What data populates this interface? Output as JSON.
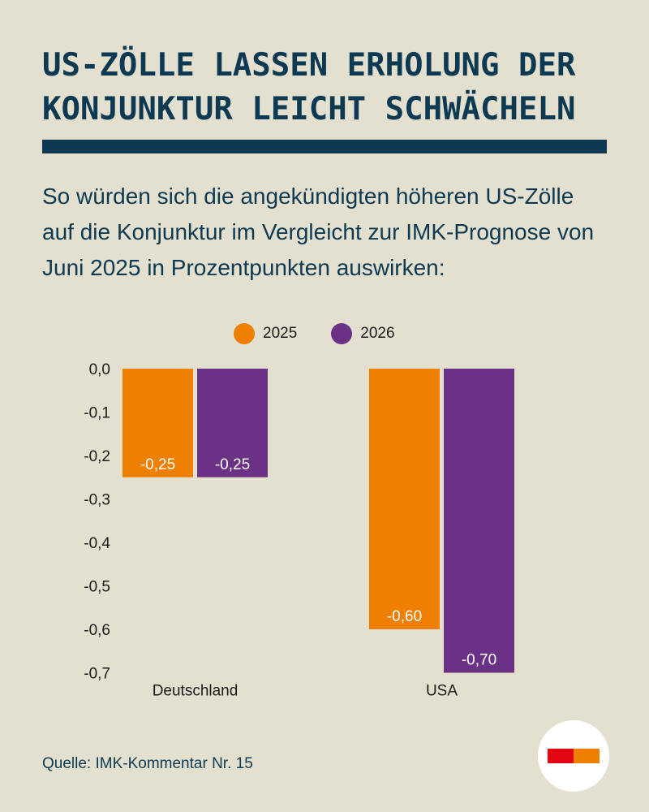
{
  "header": {
    "title": "US-ZÖLLE LASSEN ERHOLUNG DER KONJUNKTUR LEICHT SCHWÄCHELN",
    "subtitle": "So würden sich die angekündigten höheren US-Zölle auf die Konjunktur im Vergleicht zur IMK-Prognose von Juni 2025 in Prozentpunkten auswirken:"
  },
  "colors": {
    "background": "#e4e0cf",
    "title_color": "#0d3a52",
    "series_2025": "#ee7f00",
    "series_2026": "#6a3185"
  },
  "chart_data": {
    "type": "bar",
    "title": "",
    "xlabel": "",
    "ylabel": "",
    "categories": [
      "Deutschland",
      "USA"
    ],
    "series": [
      {
        "name": "2025",
        "values": [
          -0.25,
          -0.6
        ],
        "labels": [
          "-0,25",
          "-0,60"
        ],
        "color": "#ee7f00"
      },
      {
        "name": "2026",
        "values": [
          -0.25,
          -0.7
        ],
        "labels": [
          "-0,25",
          "-0,70"
        ],
        "color": "#6a3185"
      }
    ],
    "ylim": [
      -0.7,
      0.0
    ],
    "yticks": [
      0.0,
      -0.1,
      -0.2,
      -0.3,
      -0.4,
      -0.5,
      -0.6,
      -0.7
    ],
    "ytick_labels": [
      "0,0",
      "-0,1",
      "-0,2",
      "-0,3",
      "-0,4",
      "-0,5",
      "-0,6",
      "-0,7"
    ],
    "grid": false,
    "legend": "top-center"
  },
  "footer": {
    "source": "Quelle: IMK-Kommentar Nr. 15",
    "logo_icon": "imk-logo-icon"
  }
}
